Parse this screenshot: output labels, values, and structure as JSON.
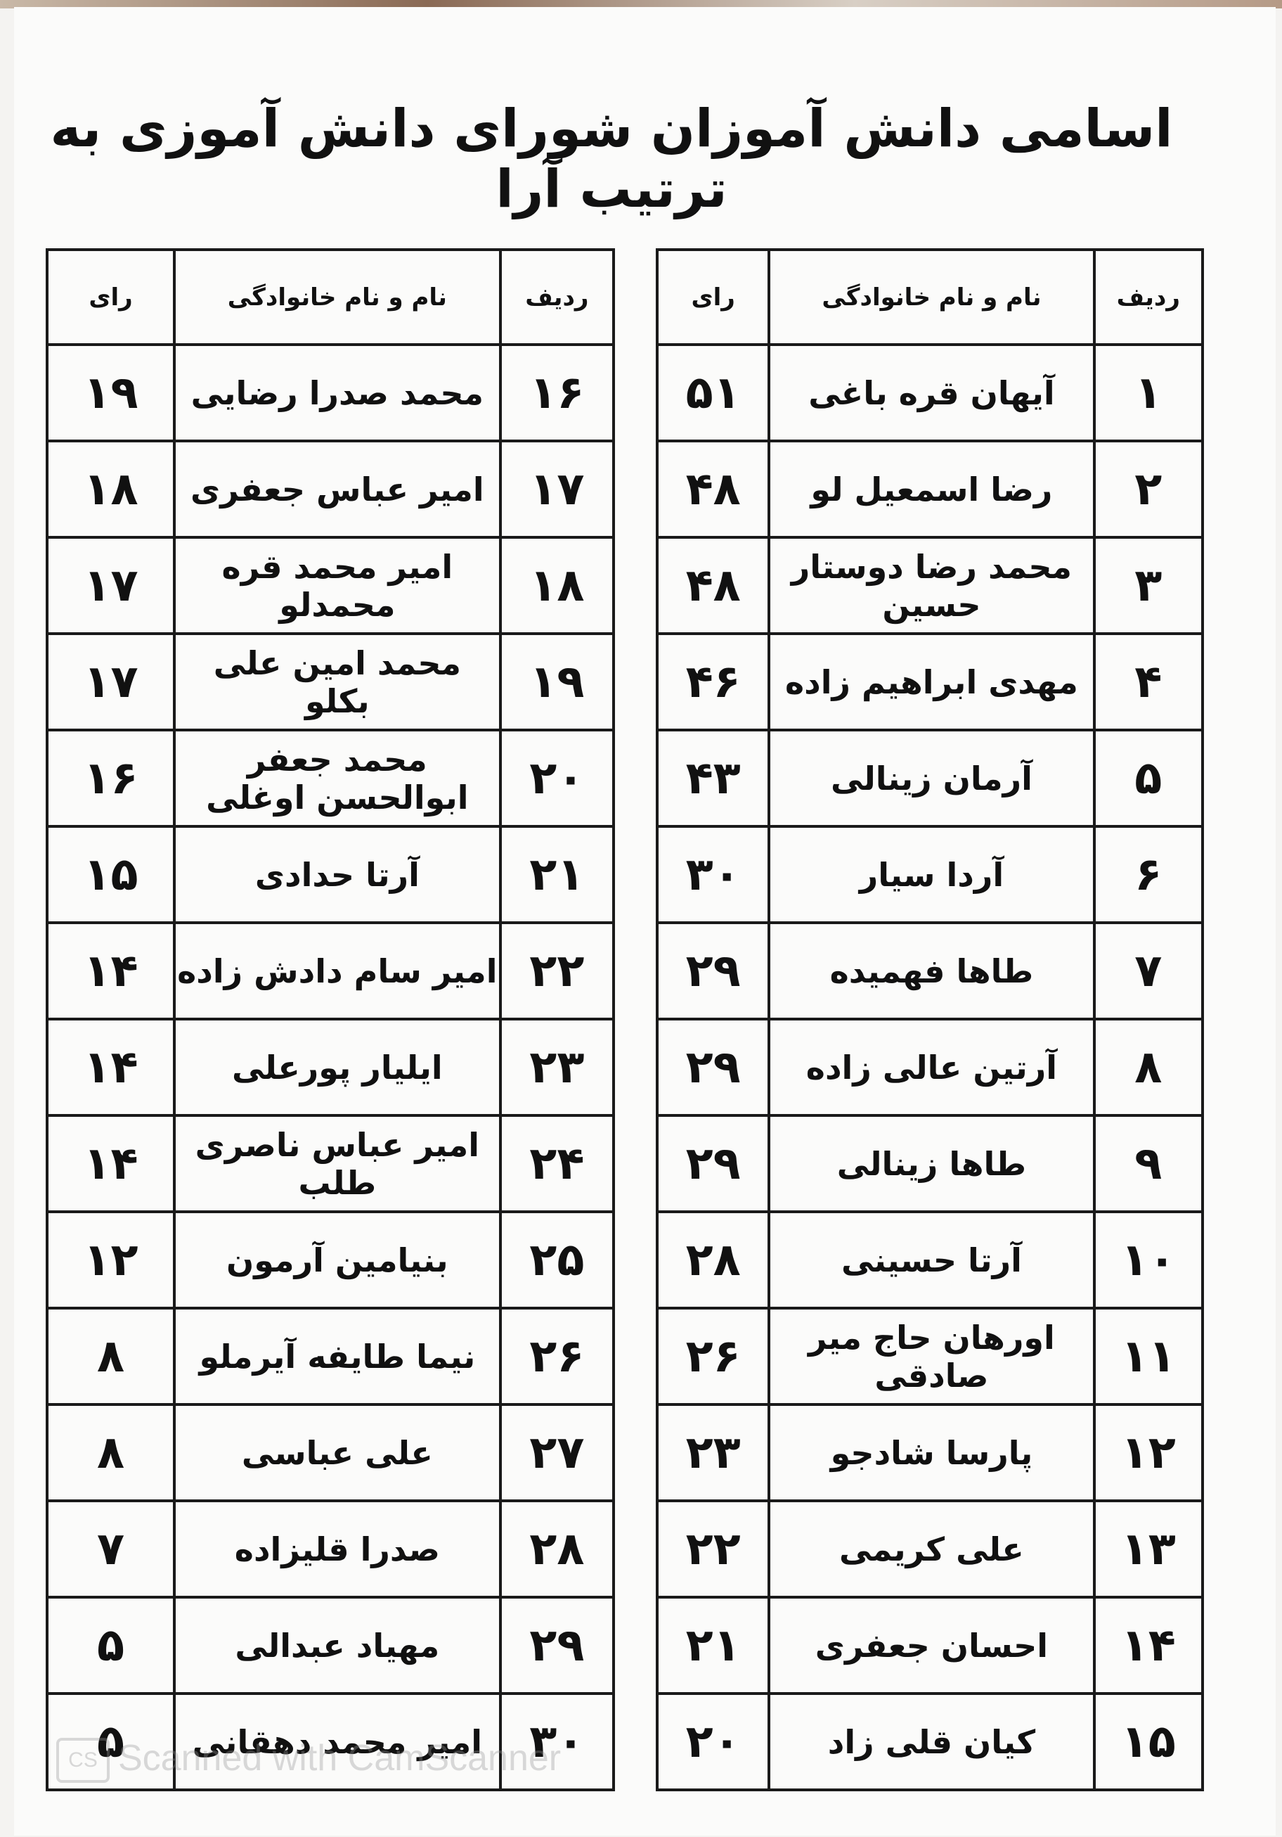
{
  "title": "اسامی دانش آموزان شورای دانش آموزی به ترتیب آرا",
  "headers": {
    "row": "ردیف",
    "name": "نام و نام خانوادگی",
    "votes": "رای"
  },
  "right_table": [
    {
      "row": "۱",
      "name": "آیهان قره باغی",
      "votes": "۵۱"
    },
    {
      "row": "۲",
      "name": "رضا اسمعیل لو",
      "votes": "۴۸"
    },
    {
      "row": "۳",
      "name": "محمد رضا دوستار حسین",
      "votes": "۴۸"
    },
    {
      "row": "۴",
      "name": "مهدی ابراهیم زاده",
      "votes": "۴۶"
    },
    {
      "row": "۵",
      "name": "آرمان زینالی",
      "votes": "۴۳"
    },
    {
      "row": "۶",
      "name": "آردا سیار",
      "votes": "۳۰"
    },
    {
      "row": "۷",
      "name": "طاها فهمیده",
      "votes": "۲۹"
    },
    {
      "row": "۸",
      "name": "آرتین عالی زاده",
      "votes": "۲۹"
    },
    {
      "row": "۹",
      "name": "طاها زینالی",
      "votes": "۲۹"
    },
    {
      "row": "۱۰",
      "name": "آرتا حسینی",
      "votes": "۲۸"
    },
    {
      "row": "۱۱",
      "name": "اورهان حاج میر صادقی",
      "votes": "۲۶"
    },
    {
      "row": "۱۲",
      "name": "پارسا شادجو",
      "votes": "۲۳"
    },
    {
      "row": "۱۳",
      "name": "علی کریمی",
      "votes": "۲۲"
    },
    {
      "row": "۱۴",
      "name": "احسان جعفری",
      "votes": "۲۱"
    },
    {
      "row": "۱۵",
      "name": "کیان قلی زاد",
      "votes": "۲۰"
    }
  ],
  "left_table": [
    {
      "row": "۱۶",
      "name": "محمد صدرا رضایی",
      "votes": "۱۹"
    },
    {
      "row": "۱۷",
      "name": "امیر عباس جعفری",
      "votes": "۱۸"
    },
    {
      "row": "۱۸",
      "name": "امیر محمد قره محمدلو",
      "votes": "۱۷"
    },
    {
      "row": "۱۹",
      "name": "محمد امین علی بکلو",
      "votes": "۱۷"
    },
    {
      "row": "۲۰",
      "name": "محمد جعفر ابوالحسن اوغلی",
      "votes": "۱۶"
    },
    {
      "row": "۲۱",
      "name": "آرتا حدادی",
      "votes": "۱۵"
    },
    {
      "row": "۲۲",
      "name": "امیر سام دادش زاده",
      "votes": "۱۴"
    },
    {
      "row": "۲۳",
      "name": "ایلیار پورعلی",
      "votes": "۱۴"
    },
    {
      "row": "۲۴",
      "name": "امیر عباس ناصری طلب",
      "votes": "۱۴"
    },
    {
      "row": "۲۵",
      "name": "بنیامین آرمون",
      "votes": "۱۲"
    },
    {
      "row": "۲۶",
      "name": "نیما طایفه آیرملو",
      "votes": "۸"
    },
    {
      "row": "۲۷",
      "name": "علی عباسی",
      "votes": "۸"
    },
    {
      "row": "۲۸",
      "name": "صدرا قلیزاده",
      "votes": "۷"
    },
    {
      "row": "۲۹",
      "name": "مهیاد عبدالی",
      "votes": "۵"
    },
    {
      "row": "۳۰",
      "name": "امیر محمد دهقانی",
      "votes": "۵"
    }
  ],
  "watermark": {
    "logo": "CS",
    "text": "Scanned with CamScanner"
  }
}
